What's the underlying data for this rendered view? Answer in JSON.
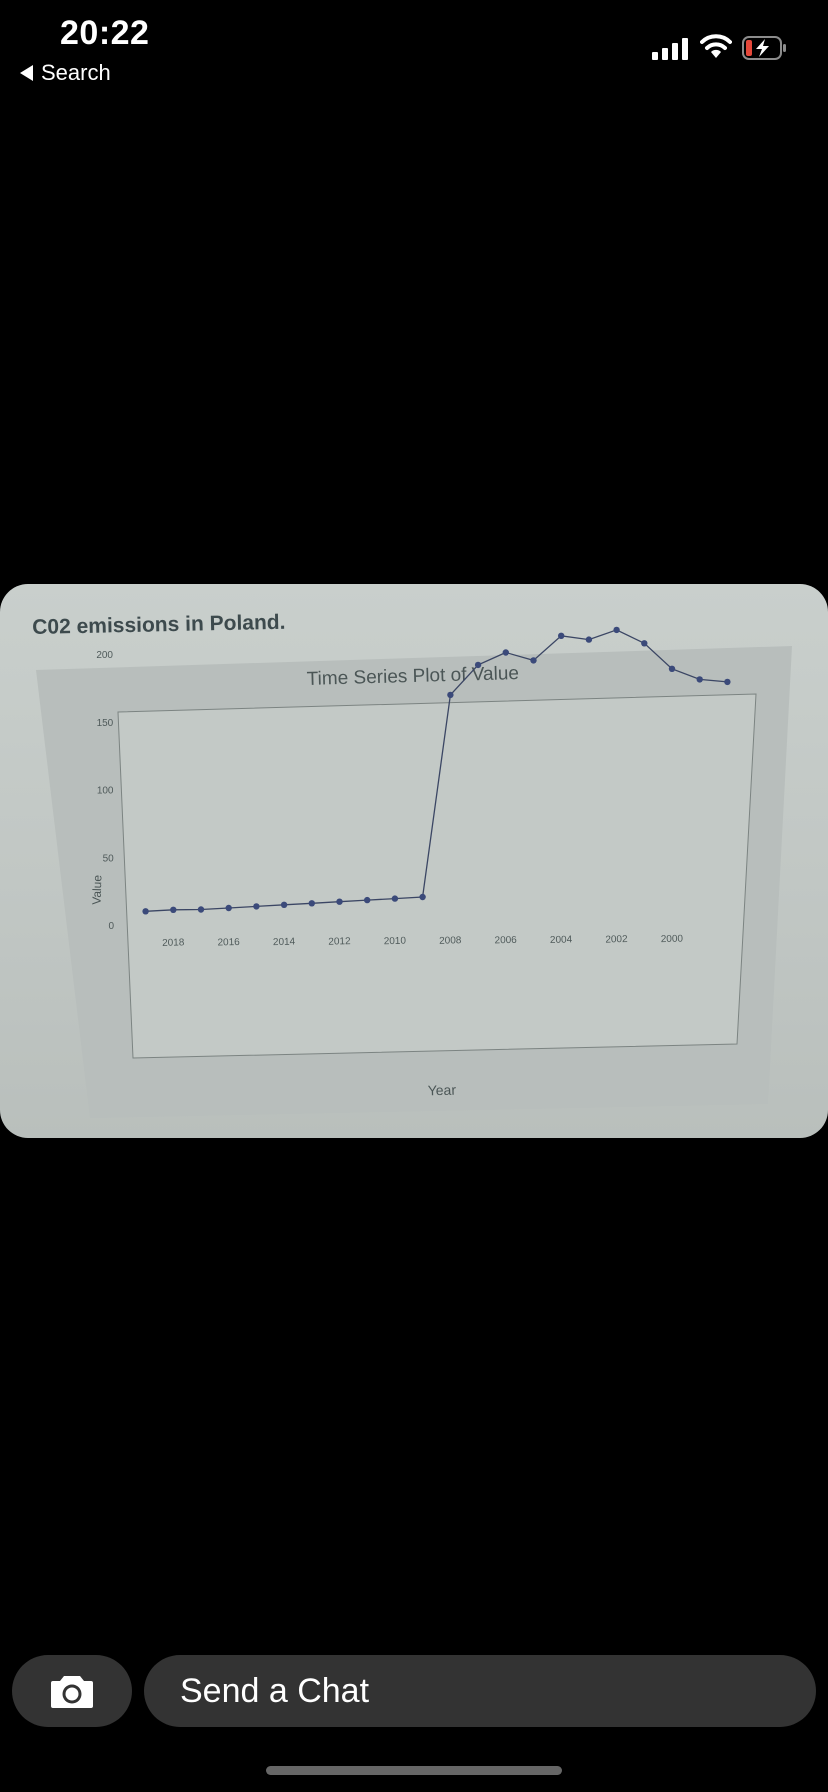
{
  "status": {
    "time": "20:22",
    "back_label": "Search"
  },
  "photo": {
    "caption": "C02 emissions in Poland.",
    "chart_data": {
      "type": "line",
      "title": "Time Series Plot of Value",
      "xlabel": "Year",
      "ylabel": "Value",
      "ylim": [
        0,
        220
      ],
      "y_ticks": [
        "0",
        "50",
        "100",
        "150",
        "200"
      ],
      "x_tick_labels": [
        "2018",
        "2016",
        "2014",
        "2012",
        "2010",
        "2008",
        "2006",
        "2004",
        "2002",
        "2000"
      ],
      "x_direction": "descending",
      "series": [
        {
          "x": [
            2019,
            2018,
            2017,
            2016,
            2015,
            2014,
            2013,
            2012,
            2011,
            2010,
            2009,
            2008,
            2007,
            2006,
            2005,
            2004,
            2003,
            2002,
            2001,
            2000,
            1999,
            1998
          ],
          "values": [
            10,
            11,
            11,
            12,
            13,
            14,
            15,
            16,
            17,
            18,
            19,
            168,
            190,
            199,
            193,
            211,
            208,
            215,
            205,
            186,
            178,
            176
          ]
        }
      ],
      "grid": false,
      "point_color": "#3b4a7a"
    }
  },
  "composer": {
    "placeholder": "Send a Chat"
  }
}
